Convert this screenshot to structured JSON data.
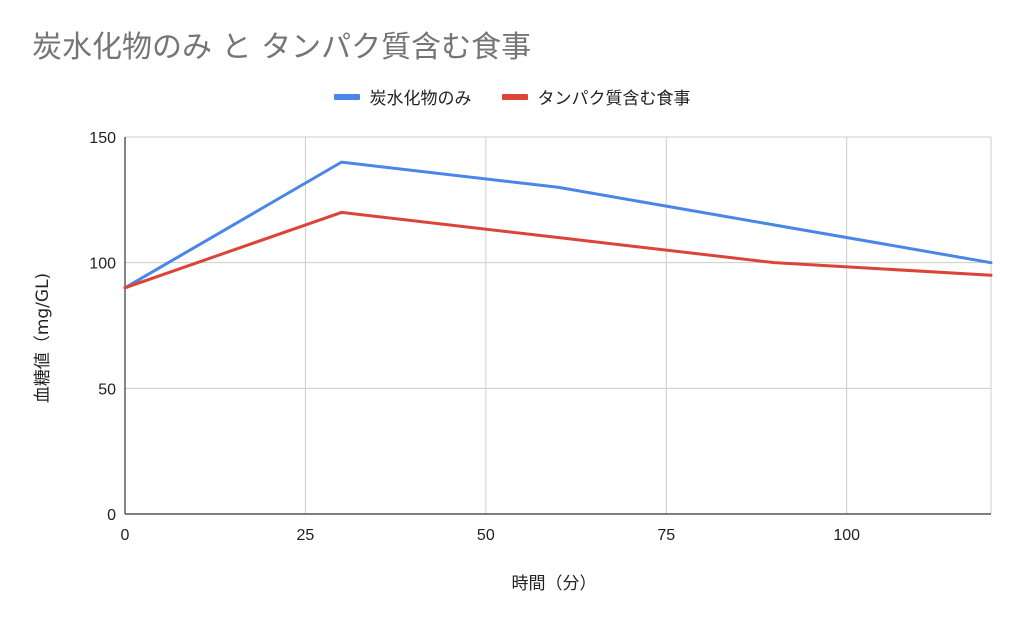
{
  "chart_data": {
    "type": "line",
    "title": "炭水化物のみ と タンパク質含む食事",
    "xlabel": "時間（分）",
    "ylabel": "血糖値（mg/GL)",
    "xlim": [
      0,
      120
    ],
    "ylim": [
      0,
      150
    ],
    "xticks": [
      0,
      25,
      50,
      75,
      100
    ],
    "yticks": [
      0,
      50,
      100,
      150
    ],
    "grid": true,
    "legend_position": "top",
    "series": [
      {
        "name": "炭水化物のみ",
        "color": "#4a86e8",
        "x": [
          0,
          30,
          60,
          90,
          120
        ],
        "values": [
          90,
          140,
          130,
          115,
          100
        ]
      },
      {
        "name": "タンパク質含む食事",
        "color": "#db4437",
        "x": [
          0,
          30,
          60,
          90,
          120
        ],
        "values": [
          90,
          120,
          110,
          100,
          95
        ]
      }
    ]
  }
}
